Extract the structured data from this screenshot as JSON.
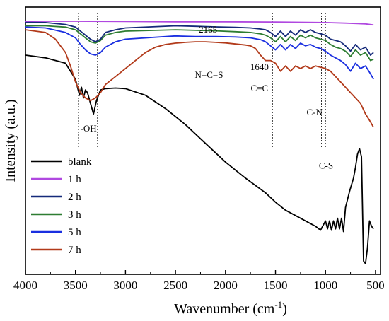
{
  "chart_data": {
    "type": "line",
    "xlabel": "Wavenumber (cm",
    "xlabel_sup": "-1",
    "xlabel_close": ")",
    "ylabel": "Intensity (a.u.)",
    "xlim": [
      4000,
      450
    ],
    "ylim": [
      0,
      1
    ],
    "x_ticks": [
      4000,
      3500,
      3000,
      2500,
      2000,
      1500,
      1000,
      500
    ],
    "y_ticks": [],
    "grid": false,
    "legend_position": "bottom-left",
    "annotations": [
      {
        "text": "-OH",
        "x": 3370,
        "y": 0.535
      },
      {
        "text": "2165",
        "x": 2175,
        "y": 0.905
      },
      {
        "text": "N=C=S",
        "x": 2165,
        "y": 0.735
      },
      {
        "text": "1640",
        "x": 1660,
        "y": 0.765
      },
      {
        "text": "C=C",
        "x": 1660,
        "y": 0.685
      },
      {
        "text": "C-N",
        "x": 1110,
        "y": 0.595
      },
      {
        "text": "C-S",
        "x": 995,
        "y": 0.395
      }
    ],
    "marker_lines": [
      3470,
      3280,
      1530,
      1040,
      1000
    ],
    "series": [
      {
        "name": "blank",
        "color": "#000000",
        "x": [
          4000,
          3800,
          3600,
          3500,
          3460,
          3440,
          3420,
          3400,
          3380,
          3350,
          3320,
          3290,
          3250,
          3200,
          3100,
          3000,
          2800,
          2600,
          2400,
          2200,
          2000,
          1800,
          1600,
          1500,
          1400,
          1300,
          1200,
          1100,
          1050,
          1000,
          980,
          960,
          940,
          920,
          900,
          880,
          860,
          840,
          820,
          800,
          760,
          720,
          700,
          680,
          660,
          640,
          620,
          600,
          580,
          560,
          540,
          520
        ],
        "y": [
          0.82,
          0.81,
          0.79,
          0.73,
          0.67,
          0.7,
          0.66,
          0.69,
          0.68,
          0.64,
          0.6,
          0.65,
          0.69,
          0.695,
          0.697,
          0.695,
          0.67,
          0.62,
          0.56,
          0.49,
          0.42,
          0.36,
          0.305,
          0.27,
          0.24,
          0.22,
          0.2,
          0.18,
          0.165,
          0.2,
          0.17,
          0.2,
          0.165,
          0.2,
          0.17,
          0.21,
          0.17,
          0.21,
          0.16,
          0.25,
          0.31,
          0.36,
          0.4,
          0.45,
          0.47,
          0.44,
          0.05,
          0.04,
          0.1,
          0.2,
          0.18,
          0.17
        ]
      },
      {
        "name": "1 h",
        "color": "#b048e0",
        "x": [
          4000,
          3500,
          3000,
          2500,
          2000,
          1500,
          1000,
          800,
          600,
          520
        ],
        "y": [
          0.947,
          0.947,
          0.946,
          0.945,
          0.945,
          0.944,
          0.942,
          0.94,
          0.937,
          0.933
        ]
      },
      {
        "name": "2 h",
        "color": "#152a7a",
        "x": [
          4000,
          3800,
          3600,
          3500,
          3400,
          3350,
          3300,
          3250,
          3200,
          3100,
          3000,
          2500,
          2300,
          2100,
          1900,
          1750,
          1650,
          1600,
          1550,
          1500,
          1450,
          1400,
          1350,
          1300,
          1250,
          1200,
          1150,
          1100,
          1050,
          1000,
          950,
          900,
          850,
          800,
          750,
          700,
          650,
          600,
          550,
          520
        ],
        "y": [
          0.944,
          0.942,
          0.935,
          0.925,
          0.895,
          0.88,
          0.87,
          0.88,
          0.905,
          0.915,
          0.922,
          0.93,
          0.928,
          0.926,
          0.924,
          0.922,
          0.918,
          0.915,
          0.905,
          0.89,
          0.91,
          0.89,
          0.91,
          0.895,
          0.915,
          0.905,
          0.915,
          0.905,
          0.9,
          0.895,
          0.88,
          0.875,
          0.87,
          0.855,
          0.835,
          0.86,
          0.84,
          0.85,
          0.82,
          0.83
        ]
      },
      {
        "name": "3 h",
        "color": "#2e7d32",
        "x": [
          4000,
          3800,
          3600,
          3500,
          3400,
          3350,
          3300,
          3250,
          3200,
          3100,
          3000,
          2500,
          2300,
          2100,
          1900,
          1750,
          1650,
          1600,
          1550,
          1500,
          1450,
          1400,
          1350,
          1300,
          1250,
          1200,
          1150,
          1100,
          1050,
          1000,
          950,
          900,
          850,
          800,
          750,
          700,
          650,
          600,
          550,
          520
        ],
        "y": [
          0.93,
          0.93,
          0.925,
          0.915,
          0.885,
          0.87,
          0.865,
          0.875,
          0.895,
          0.905,
          0.91,
          0.915,
          0.913,
          0.911,
          0.908,
          0.905,
          0.9,
          0.895,
          0.885,
          0.87,
          0.89,
          0.87,
          0.89,
          0.875,
          0.895,
          0.885,
          0.895,
          0.885,
          0.88,
          0.875,
          0.86,
          0.85,
          0.845,
          0.835,
          0.815,
          0.84,
          0.82,
          0.83,
          0.8,
          0.805
        ]
      },
      {
        "name": "5 h",
        "color": "#1a2fe0",
        "x": [
          4000,
          3800,
          3600,
          3500,
          3450,
          3400,
          3350,
          3300,
          3250,
          3200,
          3100,
          3000,
          2500,
          2300,
          2100,
          1900,
          1750,
          1650,
          1600,
          1550,
          1500,
          1450,
          1400,
          1350,
          1300,
          1250,
          1200,
          1150,
          1100,
          1050,
          1000,
          950,
          900,
          850,
          800,
          750,
          700,
          650,
          600,
          550,
          520
        ],
        "y": [
          0.925,
          0.922,
          0.905,
          0.885,
          0.86,
          0.84,
          0.825,
          0.82,
          0.83,
          0.85,
          0.87,
          0.88,
          0.892,
          0.89,
          0.89,
          0.888,
          0.885,
          0.878,
          0.87,
          0.855,
          0.84,
          0.86,
          0.84,
          0.86,
          0.845,
          0.865,
          0.855,
          0.86,
          0.85,
          0.845,
          0.835,
          0.82,
          0.81,
          0.8,
          0.785,
          0.76,
          0.79,
          0.77,
          0.78,
          0.75,
          0.73
        ]
      },
      {
        "name": "7 h",
        "color": "#b23a1a",
        "x": [
          4000,
          3800,
          3700,
          3600,
          3550,
          3500,
          3450,
          3400,
          3350,
          3300,
          3250,
          3200,
          3100,
          3000,
          2900,
          2800,
          2700,
          2600,
          2500,
          2400,
          2300,
          2200,
          2100,
          2000,
          1900,
          1800,
          1750,
          1700,
          1650,
          1600,
          1580,
          1550,
          1500,
          1450,
          1400,
          1350,
          1300,
          1250,
          1200,
          1150,
          1100,
          1050,
          1000,
          950,
          900,
          850,
          800,
          750,
          700,
          650,
          600,
          550,
          520
        ],
        "y": [
          0.915,
          0.905,
          0.88,
          0.83,
          0.78,
          0.72,
          0.68,
          0.66,
          0.65,
          0.66,
          0.68,
          0.71,
          0.74,
          0.77,
          0.8,
          0.83,
          0.85,
          0.86,
          0.865,
          0.868,
          0.87,
          0.87,
          0.868,
          0.866,
          0.862,
          0.858,
          0.855,
          0.845,
          0.82,
          0.8,
          0.8,
          0.8,
          0.79,
          0.76,
          0.78,
          0.76,
          0.78,
          0.77,
          0.78,
          0.77,
          0.78,
          0.775,
          0.77,
          0.76,
          0.74,
          0.72,
          0.7,
          0.68,
          0.66,
          0.64,
          0.6,
          0.57,
          0.55
        ]
      }
    ]
  }
}
